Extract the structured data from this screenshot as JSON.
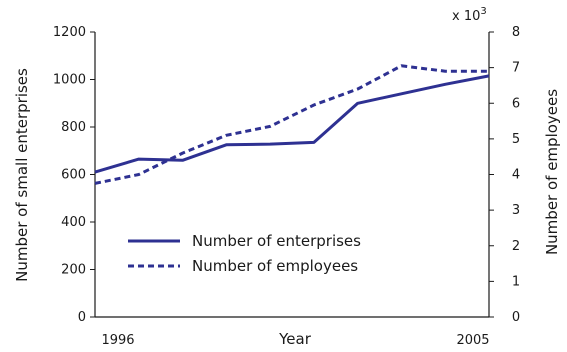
{
  "chart_data": {
    "type": "line",
    "title": "",
    "xlabel": "Year",
    "ylabel_left": "Number of small enterprises",
    "ylabel_right": "Number of employees",
    "right_multiplier": "x 10",
    "right_multiplier_exp": "3",
    "x_tick_labels": [
      "1996",
      "2005"
    ],
    "xlim": [
      1996,
      2005
    ],
    "ylim_left": [
      0,
      1200
    ],
    "ylim_right": [
      0,
      8
    ],
    "left_ticks": [
      0,
      200,
      400,
      600,
      800,
      1000,
      1200
    ],
    "right_ticks": [
      0,
      1,
      2,
      3,
      4,
      5,
      6,
      7,
      8
    ],
    "grid": false,
    "legend_position": "lower-left",
    "series": [
      {
        "name": "Number of enterprises",
        "axis": "left",
        "style": "solid",
        "color": "#2e3192",
        "x": [
          1996,
          1997,
          1998,
          1999,
          2000,
          2001,
          2002,
          2003,
          2004,
          2005
        ],
        "y": [
          610,
          665,
          660,
          725,
          728,
          735,
          900,
          940,
          980,
          1015
        ]
      },
      {
        "name": "Number of employees",
        "axis": "right",
        "style": "dashed",
        "color": "#2e3192",
        "x": [
          1996,
          1997,
          1998,
          1999,
          2000,
          2001,
          2002,
          2003,
          2004,
          2005
        ],
        "y": [
          3.75,
          4.0,
          4.6,
          5.1,
          5.35,
          5.95,
          6.4,
          7.05,
          6.9,
          6.9
        ]
      }
    ]
  }
}
